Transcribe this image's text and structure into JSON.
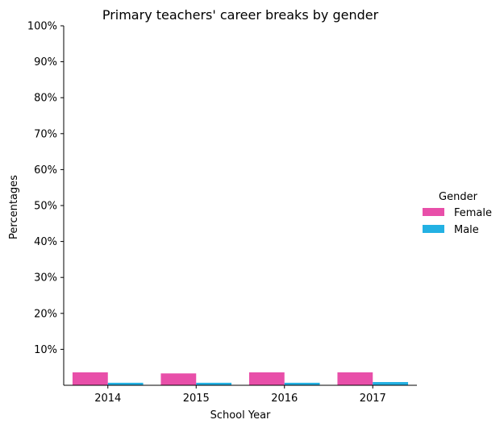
{
  "chart_data": {
    "type": "bar",
    "title": "Primary teachers' career breaks by gender",
    "xlabel": "School Year",
    "ylabel": "Percentages",
    "categories": [
      "2014",
      "2015",
      "2016",
      "2017"
    ],
    "ylim": [
      0,
      100
    ],
    "yticks": [
      {
        "value": 10,
        "label": "10%"
      },
      {
        "value": 20,
        "label": "20%"
      },
      {
        "value": 30,
        "label": "30%"
      },
      {
        "value": 40,
        "label": "40%"
      },
      {
        "value": 50,
        "label": "50%"
      },
      {
        "value": 60,
        "label": "60%"
      },
      {
        "value": 70,
        "label": "70%"
      },
      {
        "value": 80,
        "label": "80%"
      },
      {
        "value": 90,
        "label": "90%"
      },
      {
        "value": 100,
        "label": "100%"
      }
    ],
    "legend": {
      "title": "Gender",
      "placement": "right"
    },
    "grid": false,
    "series": [
      {
        "name": "Female",
        "color": "#e84fa9",
        "values": [
          3.6,
          3.3,
          3.6,
          3.6
        ]
      },
      {
        "name": "Male",
        "color": "#23b1e3",
        "values": [
          0.7,
          0.7,
          0.7,
          0.9
        ]
      }
    ]
  }
}
